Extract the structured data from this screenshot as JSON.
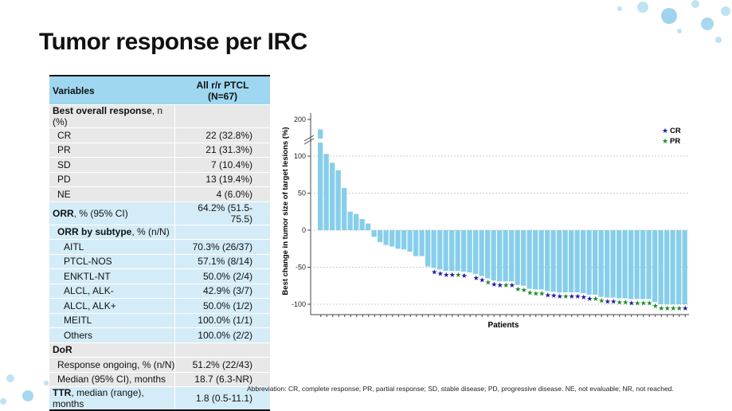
{
  "slide": {
    "title": "Tumor response per IRC",
    "footnote": "Abbreviation: CR, complete response; PR, partial response; SD, stable disease; PD, progressive disease. NE, not evaluable; NR, not reached."
  },
  "table": {
    "header": {
      "variables": "Variables",
      "col1": "All r/r PTCL",
      "col2": "(N=67)"
    },
    "rows": [
      {
        "bold": "Best overall response",
        "label": ", n (%)",
        "value": ""
      },
      {
        "label": "CR",
        "value": "22 (32.8%)"
      },
      {
        "label": "PR",
        "value": "21 (31.3%)"
      },
      {
        "label": "SD",
        "value": "7 (10.4%)"
      },
      {
        "label": "PD",
        "value": "13 (19.4%)"
      },
      {
        "label": "NE",
        "value": "4 (6.0%)"
      },
      {
        "bold": "ORR",
        "label": ", % (95% CI)",
        "value": "64.2% (51.5-75.5)"
      },
      {
        "bold": "ORR by subtype",
        "label": ", % (n/N)",
        "value": ""
      },
      {
        "label": "AITL",
        "value": "70.3% (26/37)"
      },
      {
        "label": "PTCL-NOS",
        "value": "57.1% (8/14)"
      },
      {
        "label": "ENKTL-NT",
        "value": "50.0% (2/4)"
      },
      {
        "label": "ALCL, ALK-",
        "value": "42.9% (3/7)"
      },
      {
        "label": "ALCL, ALK+",
        "value": "50.0% (1/2)"
      },
      {
        "label": "MEITL",
        "value": "100.0% (1/1)"
      },
      {
        "label": "Others",
        "value": "100.0% (2/2)"
      },
      {
        "bold": "DoR",
        "label": "",
        "value": ""
      },
      {
        "label": "Response ongoing, % (n/N)",
        "value": "51.2% (22/43)"
      },
      {
        "label": "Median (95% CI), months",
        "value": "18.7 (6.3-NR)"
      },
      {
        "bold": "TTR",
        "label": ", median (range), months",
        "value": "1.8 (0.5-11.1)"
      }
    ]
  },
  "chart_data": {
    "type": "bar",
    "subtype": "waterfall",
    "xlabel": "Patients",
    "ylabel": "Best change in tumor size of target lesions (%)",
    "yticks": [
      200,
      100,
      50,
      0,
      -50,
      -100
    ],
    "ylim": [
      -110,
      210
    ],
    "axis_break": [
      100,
      200
    ],
    "grid": "horizontal dotted",
    "legend": {
      "position": "top-right",
      "entries": [
        {
          "name": "CR",
          "color": "#1a1aa8"
        },
        {
          "name": "PR",
          "color": "#1f8a2a"
        }
      ]
    },
    "bar_color": "#87ceeb",
    "values": [
      173,
      106,
      91,
      81,
      57,
      25,
      22,
      15,
      9,
      -9,
      -16,
      -20,
      -22,
      -25,
      -26,
      -29,
      -35,
      -35,
      -49,
      -51,
      -53,
      -55,
      -55,
      -55,
      -56,
      -57,
      -59,
      -62,
      -65,
      -68,
      -69,
      -69,
      -69,
      -74,
      -75,
      -79,
      -80,
      -80,
      -82,
      -83,
      -84,
      -84,
      -84,
      -84,
      -85,
      -87,
      -87,
      -90,
      -91,
      -91,
      -92,
      -92,
      -93,
      -93,
      -93,
      -93,
      -97,
      -100,
      -100,
      -100,
      -100,
      -100
    ],
    "response": [
      "",
      "",
      "",
      "",
      "",
      "",
      "",
      "",
      "",
      "",
      "",
      "",
      "",
      "",
      "",
      "",
      "",
      "",
      "",
      "CR",
      "CR",
      "CR",
      "CR",
      "PR",
      "CR",
      "",
      "CR",
      "CR",
      "PR",
      "CR",
      "CR",
      "PR",
      "CR",
      "PR",
      "PR",
      "PR",
      "PR",
      "PR",
      "CR",
      "CR",
      "CR",
      "PR",
      "CR",
      "CR",
      "CR",
      "CR",
      "PR",
      "PR",
      "CR",
      "CR",
      "PR",
      "PR",
      "CR",
      "PR",
      "PR",
      "PR",
      "PR",
      "PR",
      "PR",
      "PR",
      "PR",
      "CR"
    ]
  }
}
